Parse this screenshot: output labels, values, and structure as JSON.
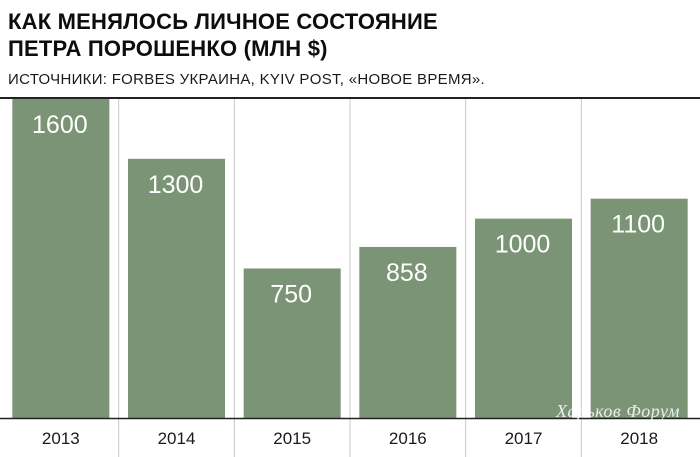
{
  "header": {
    "title_line1": "КАК МЕНЯЛОСЬ ЛИЧНОЕ СОСТОЯНИЕ",
    "title_line2": "ПЕТРА ПОРОШЕНКО (МЛН $)",
    "source": "ИСТОЧНИКИ: FORBES УКРАИНА, KYIV POST, «НОВОЕ ВРЕМЯ»."
  },
  "watermark": "Харьков Форум",
  "colors": {
    "bar": "#7a9475",
    "bar_label": "#ffffff",
    "grid": "#c8c8c8",
    "axis": "#222222",
    "tick_label": "#1a1a1a"
  },
  "chart_data": {
    "type": "bar",
    "title": "КАК МЕНЯЛОСЬ ЛИЧНОЕ СОСТОЯНИЕ ПЕТРА ПОРОШЕНКО (МЛН $)",
    "categories": [
      "2013",
      "2014",
      "2015",
      "2016",
      "2017",
      "2018"
    ],
    "values": [
      1600,
      1300,
      750,
      858,
      1000,
      1100
    ],
    "data_labels": [
      "1600",
      "1300",
      "750",
      "858",
      "1000",
      "1100"
    ],
    "xlabel": "",
    "ylabel": "",
    "ylim": [
      0,
      1600
    ],
    "grid": true
  }
}
